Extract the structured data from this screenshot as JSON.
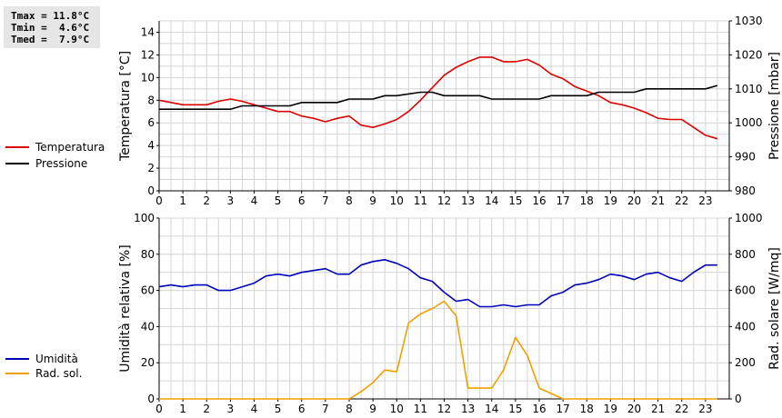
{
  "stats": {
    "tmax": "Tmax = 11.8°C",
    "tmin": "Tmin =  4.6°C",
    "tmed": "Tmed =  7.9°C"
  },
  "colors": {
    "temperature": "#dd0000",
    "pressure": "#000000",
    "humidity": "#0000bb",
    "radiation": "#f0a000",
    "grid": "#d4d4d4"
  },
  "legend": {
    "temperature": "Temperatura",
    "pressure": "Pressione",
    "humidity": "Umidità",
    "radiation": "Rad. sol."
  },
  "chart_data": [
    {
      "type": "line",
      "ylabel_left": "Temperatura [°C]",
      "ylabel_right": "Pressione [mbar]",
      "xlim": [
        0,
        24
      ],
      "ylim_left": [
        0,
        15
      ],
      "ylim_right": [
        980,
        1030
      ],
      "x_ticks": [
        "0",
        "1",
        "2",
        "3",
        "4",
        "5",
        "6",
        "7",
        "8",
        "9",
        "10",
        "11",
        "12",
        "13",
        "14",
        "15",
        "16",
        "17",
        "18",
        "19",
        "20",
        "21",
        "22",
        "23"
      ],
      "y_ticks_left": [
        "0",
        "2",
        "4",
        "6",
        "8",
        "10",
        "12",
        "14"
      ],
      "y_ticks_right": [
        "980",
        "990",
        "1000",
        "1010",
        "1020",
        "1030"
      ],
      "grid": true,
      "series": [
        {
          "name": "Temperatura",
          "axis": "left",
          "x": [
            0,
            0.5,
            1,
            1.5,
            2,
            2.5,
            3,
            3.5,
            4,
            4.5,
            5,
            5.5,
            6,
            6.5,
            7,
            7.5,
            8,
            8.5,
            9,
            9.5,
            10,
            10.5,
            11,
            11.5,
            12,
            12.5,
            13,
            13.5,
            14,
            14.5,
            15,
            15.5,
            16,
            16.5,
            17,
            17.5,
            18,
            18.5,
            19,
            19.5,
            20,
            20.5,
            21,
            21.5,
            22,
            22.5,
            23,
            23.5
          ],
          "y": [
            8.0,
            7.8,
            7.6,
            7.6,
            7.6,
            7.9,
            8.1,
            7.9,
            7.6,
            7.3,
            7.0,
            7.0,
            6.6,
            6.4,
            6.1,
            6.4,
            6.6,
            5.8,
            5.6,
            5.9,
            6.3,
            7.0,
            8.0,
            9.1,
            10.2,
            10.9,
            11.4,
            11.8,
            11.8,
            11.4,
            11.4,
            11.6,
            11.1,
            10.3,
            9.9,
            9.2,
            8.8,
            8.4,
            7.8,
            7.6,
            7.3,
            6.9,
            6.4,
            6.3,
            6.3,
            5.6,
            4.9,
            4.6
          ]
        },
        {
          "name": "Pressione",
          "axis": "right",
          "x": [
            0,
            1,
            2,
            3,
            3.5,
            4,
            5,
            5.5,
            6,
            7,
            7.5,
            8,
            9,
            9.5,
            10,
            11,
            11.5,
            12,
            13,
            13.5,
            14,
            15,
            16,
            16.5,
            17,
            18,
            18.5,
            19,
            20,
            20.5,
            21,
            22,
            23,
            23.5
          ],
          "y": [
            1004,
            1004,
            1004,
            1004,
            1005,
            1005,
            1005,
            1005,
            1006,
            1006,
            1006,
            1007,
            1007,
            1008,
            1008,
            1009,
            1009,
            1008,
            1008,
            1008,
            1007,
            1007,
            1007,
            1008,
            1008,
            1008,
            1009,
            1009,
            1009,
            1010,
            1010,
            1010,
            1010,
            1011
          ]
        }
      ]
    },
    {
      "type": "line",
      "ylabel_left": "Umidità relativa [%]",
      "ylabel_right": "Rad. solare [W/mq]",
      "xlim": [
        0,
        24
      ],
      "ylim_left": [
        0,
        100
      ],
      "ylim_right": [
        0,
        1000
      ],
      "x_ticks": [
        "0",
        "1",
        "2",
        "3",
        "4",
        "5",
        "6",
        "7",
        "8",
        "9",
        "10",
        "11",
        "12",
        "13",
        "14",
        "15",
        "16",
        "17",
        "18",
        "19",
        "20",
        "21",
        "22",
        "23"
      ],
      "y_ticks_left": [
        "0",
        "20",
        "40",
        "60",
        "80",
        "100"
      ],
      "y_ticks_right": [
        "0",
        "200",
        "400",
        "600",
        "800",
        "1000"
      ],
      "grid": true,
      "series": [
        {
          "name": "Umidità",
          "axis": "left",
          "x": [
            0,
            0.5,
            1,
            1.5,
            2,
            2.5,
            3,
            3.5,
            4,
            4.5,
            5,
            5.5,
            6,
            6.5,
            7,
            7.5,
            8,
            8.5,
            9,
            9.5,
            10,
            10.5,
            11,
            11.5,
            12,
            12.5,
            13,
            13.5,
            14,
            14.5,
            15,
            15.5,
            16,
            16.5,
            17,
            17.5,
            18,
            18.5,
            19,
            19.5,
            20,
            20.5,
            21,
            21.5,
            22,
            22.5,
            23,
            23.5
          ],
          "y": [
            62,
            63,
            62,
            63,
            63,
            60,
            60,
            62,
            64,
            68,
            69,
            68,
            70,
            71,
            72,
            69,
            69,
            74,
            76,
            77,
            75,
            72,
            67,
            65,
            59,
            54,
            55,
            51,
            51,
            52,
            51,
            52,
            52,
            57,
            59,
            63,
            64,
            66,
            69,
            68,
            66,
            69,
            70,
            67,
            65,
            70,
            74,
            74
          ]
        },
        {
          "name": "Rad. sol.",
          "axis": "right",
          "x": [
            0,
            8,
            8.5,
            9,
            9.5,
            10,
            10.5,
            11,
            11.5,
            12,
            12.5,
            13,
            13.5,
            14,
            14.5,
            15,
            15.5,
            16,
            16.5,
            17,
            17.5,
            23.5
          ],
          "y": [
            0,
            0,
            40,
            90,
            160,
            150,
            420,
            470,
            500,
            540,
            460,
            60,
            60,
            60,
            160,
            340,
            240,
            60,
            30,
            0,
            0,
            0
          ]
        }
      ]
    }
  ]
}
